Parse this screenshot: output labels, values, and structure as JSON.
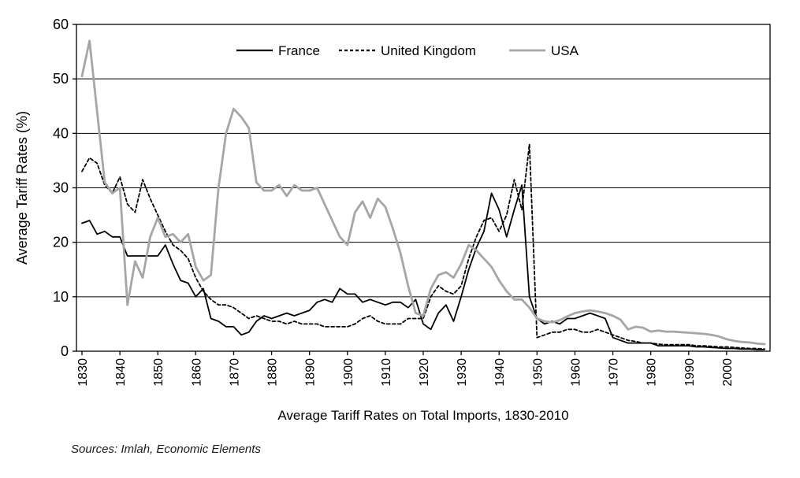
{
  "chart_data": {
    "type": "line",
    "title": "Average Tariff Rates on Total Imports, 1830-2010",
    "ylabel": "Average Tariff Rates (%)",
    "xlabel": "",
    "source": "Sources: Imlah, Economic Elements",
    "ylim": [
      0,
      60
    ],
    "yticks": [
      0,
      10,
      20,
      30,
      40,
      50,
      60
    ],
    "xlim": [
      1830,
      2010
    ],
    "xticks": [
      1830,
      1840,
      1850,
      1860,
      1870,
      1880,
      1890,
      1900,
      1910,
      1920,
      1930,
      1940,
      1950,
      1960,
      1970,
      1980,
      1990,
      2000
    ],
    "grid": "horizontal",
    "legend_position": "top-center-inside",
    "axis_color": "#000000",
    "x": [
      1830,
      1832,
      1834,
      1836,
      1838,
      1840,
      1842,
      1844,
      1846,
      1848,
      1850,
      1852,
      1854,
      1856,
      1858,
      1860,
      1862,
      1864,
      1866,
      1868,
      1870,
      1872,
      1874,
      1876,
      1878,
      1880,
      1882,
      1884,
      1886,
      1888,
      1890,
      1892,
      1894,
      1896,
      1898,
      1900,
      1902,
      1904,
      1906,
      1908,
      1910,
      1912,
      1914,
      1916,
      1918,
      1920,
      1922,
      1924,
      1926,
      1928,
      1930,
      1932,
      1934,
      1936,
      1938,
      1940,
      1942,
      1944,
      1946,
      1948,
      1950,
      1952,
      1954,
      1956,
      1958,
      1960,
      1962,
      1964,
      1966,
      1968,
      1970,
      1972,
      1974,
      1976,
      1978,
      1980,
      1982,
      1984,
      1986,
      1988,
      1990,
      1992,
      1994,
      1996,
      1998,
      2000,
      2002,
      2004,
      2006,
      2008,
      2010
    ],
    "series": [
      {
        "name": "France",
        "color": "#000000",
        "dash": "none",
        "width": 1.8,
        "values": [
          23.5,
          24,
          21.5,
          22,
          21,
          21,
          17.5,
          17.5,
          17.5,
          17.5,
          17.5,
          19.5,
          16,
          13,
          12.5,
          10,
          11.5,
          6,
          5.5,
          4.5,
          4.5,
          3,
          3.5,
          5.5,
          6.5,
          6,
          6.5,
          7,
          6.5,
          7,
          7.5,
          9,
          9.5,
          9,
          11.5,
          10.5,
          10.5,
          9,
          9.5,
          9,
          8.5,
          9,
          9,
          8,
          9.5,
          5,
          4,
          7,
          8.5,
          5.5,
          10,
          15,
          19,
          22,
          29,
          26,
          21,
          26,
          30.5,
          10,
          6,
          5,
          5.5,
          5,
          6,
          6,
          6.5,
          7,
          6.5,
          6,
          2.5,
          2,
          1.5,
          1.5,
          1.5,
          1.5,
          1,
          1,
          1,
          1,
          1,
          0.8,
          0.8,
          0.7,
          0.6,
          0.5,
          0.5,
          0.4,
          0.4,
          0.3,
          0.3
        ]
      },
      {
        "name": "United Kingdom",
        "color": "#000000",
        "dash": "4,3",
        "width": 1.8,
        "values": [
          33,
          35.5,
          34.5,
          30.5,
          29,
          32,
          27,
          25.5,
          31.5,
          28,
          25,
          22,
          19.5,
          18.5,
          17,
          13.5,
          11,
          9.5,
          8.5,
          8.5,
          8,
          7,
          6,
          6.5,
          6,
          5.5,
          5.5,
          5,
          5.5,
          5,
          5,
          5,
          4.5,
          4.5,
          4.5,
          4.5,
          5,
          6,
          6.5,
          5.5,
          5,
          5,
          5,
          6,
          6,
          6,
          10,
          12,
          11,
          10.5,
          12,
          17,
          21,
          24,
          24.5,
          22,
          25,
          31.5,
          26,
          38,
          2.5,
          3,
          3.5,
          3.5,
          4,
          4,
          3.5,
          3.5,
          4,
          3.5,
          3,
          2.5,
          2,
          1.8,
          1.5,
          1.5,
          1.3,
          1.2,
          1.2,
          1.2,
          1.2,
          1,
          1,
          0.9,
          0.8,
          0.8,
          0.7,
          0.6,
          0.5,
          0.5,
          0.4
        ]
      },
      {
        "name": "USA",
        "color": "#a6a6a6",
        "dash": "none",
        "width": 2.8,
        "values": [
          50.5,
          57,
          44,
          31,
          29,
          30,
          8.5,
          16.5,
          13.5,
          21,
          24.5,
          21,
          21.5,
          20,
          21.5,
          15.5,
          13,
          14,
          30,
          40,
          44.5,
          43,
          41,
          31,
          29.5,
          29.5,
          30.5,
          28.5,
          30.5,
          29.5,
          29.5,
          30,
          27,
          24,
          21,
          19.5,
          25.5,
          27.5,
          24.5,
          28,
          26.5,
          22.5,
          18,
          12,
          7,
          6.5,
          11.5,
          14,
          14.5,
          13.5,
          16,
          19.5,
          18.5,
          17,
          15.5,
          13,
          11,
          9.5,
          9.5,
          8,
          6,
          5.5,
          5.3,
          5.7,
          6.4,
          7,
          7.3,
          7.5,
          7.3,
          7,
          6.5,
          5.8,
          4,
          4.5,
          4.3,
          3.6,
          3.8,
          3.6,
          3.6,
          3.5,
          3.4,
          3.3,
          3.2,
          3,
          2.7,
          2.2,
          1.9,
          1.7,
          1.6,
          1.4,
          1.3
        ]
      }
    ]
  }
}
